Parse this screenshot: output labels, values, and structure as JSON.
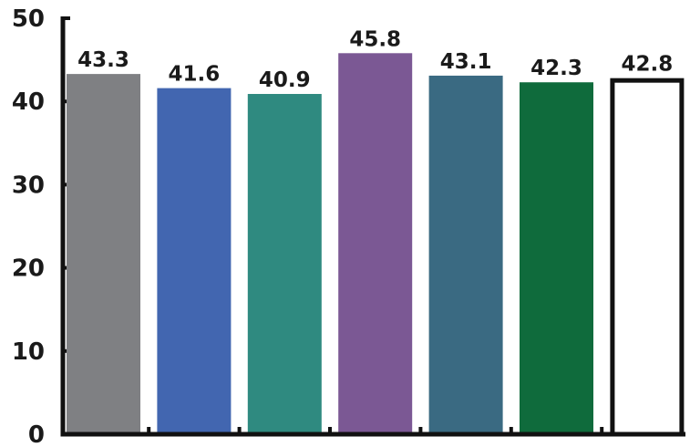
{
  "chart_data": {
    "type": "bar",
    "title": "",
    "xlabel": "",
    "ylabel": "",
    "ylim": [
      0,
      50
    ],
    "yticks": [
      0,
      10,
      20,
      30,
      40,
      50
    ],
    "grid": false,
    "legend": "none",
    "values": [
      43.3,
      41.6,
      40.9,
      45.8,
      43.1,
      42.3,
      42.8
    ],
    "data_labels": [
      "43.3",
      "41.6",
      "40.9",
      "45.8",
      "43.1",
      "42.3",
      "42.8"
    ],
    "bar_colors": [
      "#7f8083",
      "#4266b0",
      "#2f8a80",
      "#7b5894",
      "#3a6a82",
      "#0f6b3c",
      "#ffffff"
    ],
    "last_bar_outlined": true
  }
}
